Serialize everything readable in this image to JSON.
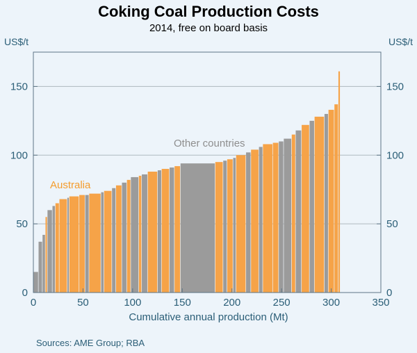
{
  "header": {
    "title": "Coking Coal Production Costs",
    "subtitle": "2014, free on board basis"
  },
  "axes": {
    "y_left_unit": "US$/t",
    "y_right_unit": "US$/t",
    "x_label": "Cumulative annual production (Mt)"
  },
  "annotations": {
    "australia": "Australia",
    "other_countries": "Other countries"
  },
  "footer": {
    "sources": "Sources: AME Group; RBA"
  },
  "colors": {
    "australia": "#F6A348",
    "other": "#9B9B9B",
    "background": "#EDF4FA",
    "grid": "#AEB9BF",
    "frame": "#5D7585",
    "text": "#2B5E77"
  },
  "chart_data": {
    "type": "bar",
    "title": "Coking Coal Production Costs",
    "subtitle": "2014, free on board basis",
    "xlabel": "Cumulative annual production (Mt)",
    "ylabel": "US$/t",
    "xlim": [
      0,
      350
    ],
    "ylim": [
      0,
      175
    ],
    "x_ticks": [
      0,
      50,
      100,
      150,
      200,
      250,
      300,
      350
    ],
    "y_ticks": [
      0,
      50,
      100,
      150
    ],
    "grid": true,
    "legend_labels": [
      "Australia",
      "Other countries"
    ],
    "note": "Cost curve: segment width = annual production (Mt), segment height = cost (US$/t), sorted ascending by cost",
    "segments": [
      {
        "group": "other",
        "width_mt": 5,
        "cost_usd_t": 15
      },
      {
        "group": "other",
        "width_mt": 4,
        "cost_usd_t": 37
      },
      {
        "group": "other",
        "width_mt": 3,
        "cost_usd_t": 42
      },
      {
        "group": "australia",
        "width_mt": 2,
        "cost_usd_t": 55
      },
      {
        "group": "other",
        "width_mt": 5,
        "cost_usd_t": 60
      },
      {
        "group": "other",
        "width_mt": 3,
        "cost_usd_t": 63
      },
      {
        "group": "australia",
        "width_mt": 4,
        "cost_usd_t": 65
      },
      {
        "group": "australia",
        "width_mt": 8,
        "cost_usd_t": 68
      },
      {
        "group": "other",
        "width_mt": 2,
        "cost_usd_t": 69
      },
      {
        "group": "australia",
        "width_mt": 10,
        "cost_usd_t": 70
      },
      {
        "group": "australia",
        "width_mt": 6,
        "cost_usd_t": 71
      },
      {
        "group": "other",
        "width_mt": 4,
        "cost_usd_t": 71
      },
      {
        "group": "australia",
        "width_mt": 12,
        "cost_usd_t": 72
      },
      {
        "group": "other",
        "width_mt": 3,
        "cost_usd_t": 73
      },
      {
        "group": "australia",
        "width_mt": 8,
        "cost_usd_t": 74
      },
      {
        "group": "other",
        "width_mt": 4,
        "cost_usd_t": 76
      },
      {
        "group": "australia",
        "width_mt": 6,
        "cost_usd_t": 78
      },
      {
        "group": "other",
        "width_mt": 5,
        "cost_usd_t": 80
      },
      {
        "group": "australia",
        "width_mt": 4,
        "cost_usd_t": 82
      },
      {
        "group": "other",
        "width_mt": 8,
        "cost_usd_t": 84
      },
      {
        "group": "australia",
        "width_mt": 3,
        "cost_usd_t": 85
      },
      {
        "group": "other",
        "width_mt": 6,
        "cost_usd_t": 86
      },
      {
        "group": "australia",
        "width_mt": 10,
        "cost_usd_t": 88
      },
      {
        "group": "other",
        "width_mt": 4,
        "cost_usd_t": 89
      },
      {
        "group": "australia",
        "width_mt": 8,
        "cost_usd_t": 90
      },
      {
        "group": "other",
        "width_mt": 5,
        "cost_usd_t": 91
      },
      {
        "group": "australia",
        "width_mt": 6,
        "cost_usd_t": 92
      },
      {
        "group": "other",
        "width_mt": 35,
        "cost_usd_t": 94
      },
      {
        "group": "australia",
        "width_mt": 8,
        "cost_usd_t": 95
      },
      {
        "group": "other",
        "width_mt": 4,
        "cost_usd_t": 96
      },
      {
        "group": "australia",
        "width_mt": 6,
        "cost_usd_t": 97
      },
      {
        "group": "other",
        "width_mt": 3,
        "cost_usd_t": 98
      },
      {
        "group": "australia",
        "width_mt": 10,
        "cost_usd_t": 100
      },
      {
        "group": "other",
        "width_mt": 5,
        "cost_usd_t": 102
      },
      {
        "group": "australia",
        "width_mt": 8,
        "cost_usd_t": 104
      },
      {
        "group": "other",
        "width_mt": 4,
        "cost_usd_t": 106
      },
      {
        "group": "australia",
        "width_mt": 10,
        "cost_usd_t": 108
      },
      {
        "group": "australia",
        "width_mt": 6,
        "cost_usd_t": 109
      },
      {
        "group": "other",
        "width_mt": 5,
        "cost_usd_t": 110
      },
      {
        "group": "other",
        "width_mt": 8,
        "cost_usd_t": 112
      },
      {
        "group": "australia",
        "width_mt": 4,
        "cost_usd_t": 115
      },
      {
        "group": "other",
        "width_mt": 6,
        "cost_usd_t": 118
      },
      {
        "group": "australia",
        "width_mt": 8,
        "cost_usd_t": 122
      },
      {
        "group": "other",
        "width_mt": 5,
        "cost_usd_t": 125
      },
      {
        "group": "australia",
        "width_mt": 10,
        "cost_usd_t": 128
      },
      {
        "group": "other",
        "width_mt": 4,
        "cost_usd_t": 130
      },
      {
        "group": "australia",
        "width_mt": 6,
        "cost_usd_t": 133
      },
      {
        "group": "australia",
        "width_mt": 4,
        "cost_usd_t": 137
      },
      {
        "group": "australia",
        "width_mt": 2,
        "cost_usd_t": 161
      }
    ]
  }
}
